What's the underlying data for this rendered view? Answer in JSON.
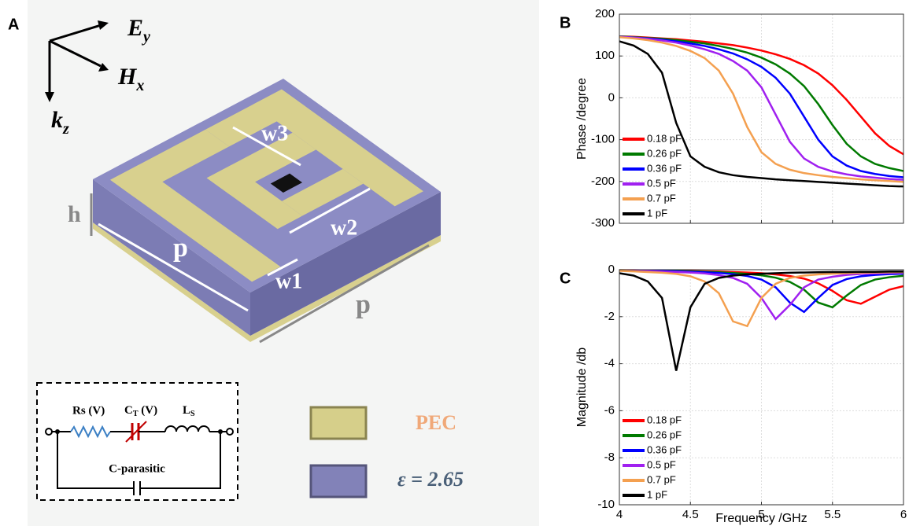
{
  "panel_a": {
    "label": "A",
    "axes": [
      {
        "main": "E",
        "sub": "y"
      },
      {
        "main": "H",
        "sub": "x"
      },
      {
        "main": "k",
        "sub": "z"
      }
    ],
    "dimensions": [
      "w3",
      "w2",
      "w1",
      "h",
      "p",
      "p"
    ],
    "circuit": {
      "rs": "Rs (V)",
      "ct": {
        "main": "C",
        "sub": "T",
        "tail": " (V)"
      },
      "ls": {
        "main": "L",
        "sub": "S"
      },
      "cp": "C-parasitic"
    },
    "materials": [
      "PEC",
      "ε = 2.65"
    ]
  },
  "chart_data": [
    {
      "type": "line",
      "label": "B",
      "ylabel": "Phase /degree",
      "x": [
        4,
        4.1,
        4.2,
        4.3,
        4.4,
        4.5,
        4.6,
        4.7,
        4.8,
        4.9,
        5,
        5.1,
        5.2,
        5.3,
        5.4,
        5.5,
        5.6,
        5.7,
        5.8,
        5.9,
        6
      ],
      "xlim": [
        4,
        6
      ],
      "xticks": [
        4,
        4.5,
        5,
        5.5,
        6
      ],
      "ylim": [
        -300,
        200
      ],
      "yticks": [
        -300,
        -200,
        -100,
        0,
        100,
        200
      ],
      "grid": true,
      "legend": "lower left",
      "series": [
        {
          "name": "0.18 pF",
          "color": "#ff0000",
          "values": [
            147,
            146,
            144,
            142,
            140,
            137,
            134,
            130,
            126,
            120,
            113,
            104,
            93,
            78,
            58,
            30,
            -5,
            -45,
            -85,
            -115,
            -135
          ]
        },
        {
          "name": "0.26 pF",
          "color": "#007a00",
          "values": [
            147,
            145,
            143,
            141,
            138,
            134,
            130,
            124,
            117,
            108,
            96,
            80,
            58,
            28,
            -15,
            -65,
            -110,
            -140,
            -158,
            -168,
            -175
          ]
        },
        {
          "name": "0.36 pF",
          "color": "#0000ff",
          "values": [
            146,
            144,
            142,
            139,
            135,
            130,
            124,
            116,
            106,
            92,
            74,
            48,
            10,
            -45,
            -100,
            -140,
            -162,
            -175,
            -182,
            -187,
            -190
          ]
        },
        {
          "name": "0.5 pF",
          "color": "#a020f0",
          "values": [
            146,
            144,
            141,
            137,
            132,
            125,
            116,
            105,
            88,
            65,
            25,
            -40,
            -105,
            -145,
            -165,
            -176,
            -183,
            -188,
            -191,
            -194,
            -196
          ]
        },
        {
          "name": "0.7 pF",
          "color": "#f4a050",
          "values": [
            145,
            142,
            138,
            132,
            124,
            112,
            95,
            65,
            10,
            -70,
            -130,
            -158,
            -172,
            -180,
            -185,
            -189,
            -192,
            -195,
            -197,
            -199,
            -201
          ]
        },
        {
          "name": "1 pF",
          "color": "#000000",
          "values": [
            135,
            125,
            105,
            60,
            -60,
            -140,
            -165,
            -178,
            -185,
            -189,
            -192,
            -195,
            -197,
            -199,
            -201,
            -203,
            -205,
            -207,
            -209,
            -211,
            -212
          ]
        }
      ]
    },
    {
      "type": "line",
      "label": "C",
      "ylabel": "Magnitude /db",
      "xlabel": "Frequency /GHz",
      "x": [
        4,
        4.1,
        4.2,
        4.3,
        4.4,
        4.5,
        4.6,
        4.7,
        4.8,
        4.9,
        5,
        5.1,
        5.2,
        5.3,
        5.4,
        5.5,
        5.6,
        5.7,
        5.8,
        5.9,
        6
      ],
      "xlim": [
        4,
        6
      ],
      "xticks": [
        4,
        4.5,
        5,
        5.5,
        6
      ],
      "ylim": [
        -10,
        0
      ],
      "yticks": [
        -10,
        -8,
        -6,
        -4,
        -2,
        0
      ],
      "grid": true,
      "legend": "lower left",
      "series": [
        {
          "name": "0.18 pF",
          "color": "#ff0000",
          "values": [
            -0.02,
            -0.02,
            -0.03,
            -0.04,
            -0.05,
            -0.06,
            -0.07,
            -0.08,
            -0.1,
            -0.12,
            -0.15,
            -0.2,
            -0.27,
            -0.38,
            -0.58,
            -0.9,
            -1.3,
            -1.45,
            -1.15,
            -0.85,
            -0.7
          ]
        },
        {
          "name": "0.26 pF",
          "color": "#007a00",
          "values": [
            -0.02,
            -0.03,
            -0.04,
            -0.05,
            -0.06,
            -0.07,
            -0.09,
            -0.11,
            -0.14,
            -0.18,
            -0.24,
            -0.34,
            -0.52,
            -0.85,
            -1.4,
            -1.6,
            -1.1,
            -0.65,
            -0.42,
            -0.32,
            -0.26
          ]
        },
        {
          "name": "0.36 pF",
          "color": "#0000ff",
          "values": [
            -0.03,
            -0.04,
            -0.05,
            -0.06,
            -0.07,
            -0.09,
            -0.11,
            -0.14,
            -0.19,
            -0.27,
            -0.42,
            -0.75,
            -1.4,
            -1.8,
            -1.2,
            -0.65,
            -0.4,
            -0.28,
            -0.22,
            -0.19,
            -0.17
          ]
        },
        {
          "name": "0.5 pF",
          "color": "#a020f0",
          "values": [
            -0.04,
            -0.05,
            -0.06,
            -0.08,
            -0.1,
            -0.12,
            -0.16,
            -0.23,
            -0.35,
            -0.6,
            -1.2,
            -2.1,
            -1.5,
            -0.75,
            -0.42,
            -0.3,
            -0.22,
            -0.18,
            -0.16,
            -0.14,
            -0.13
          ]
        },
        {
          "name": "0.7 pF",
          "color": "#f4a050",
          "values": [
            -0.05,
            -0.07,
            -0.1,
            -0.13,
            -0.18,
            -0.28,
            -0.5,
            -1,
            -2.2,
            -2.4,
            -1.2,
            -0.6,
            -0.35,
            -0.25,
            -0.2,
            -0.17,
            -0.15,
            -0.13,
            -0.12,
            -0.11,
            -0.1
          ]
        },
        {
          "name": "1 pF",
          "color": "#000000",
          "values": [
            -0.15,
            -0.25,
            -0.5,
            -1.2,
            -4.3,
            -1.6,
            -0.6,
            -0.35,
            -0.25,
            -0.2,
            -0.17,
            -0.15,
            -0.13,
            -0.12,
            -0.11,
            -0.1,
            -0.1,
            -0.09,
            -0.09,
            -0.08,
            -0.08
          ]
        }
      ]
    }
  ]
}
